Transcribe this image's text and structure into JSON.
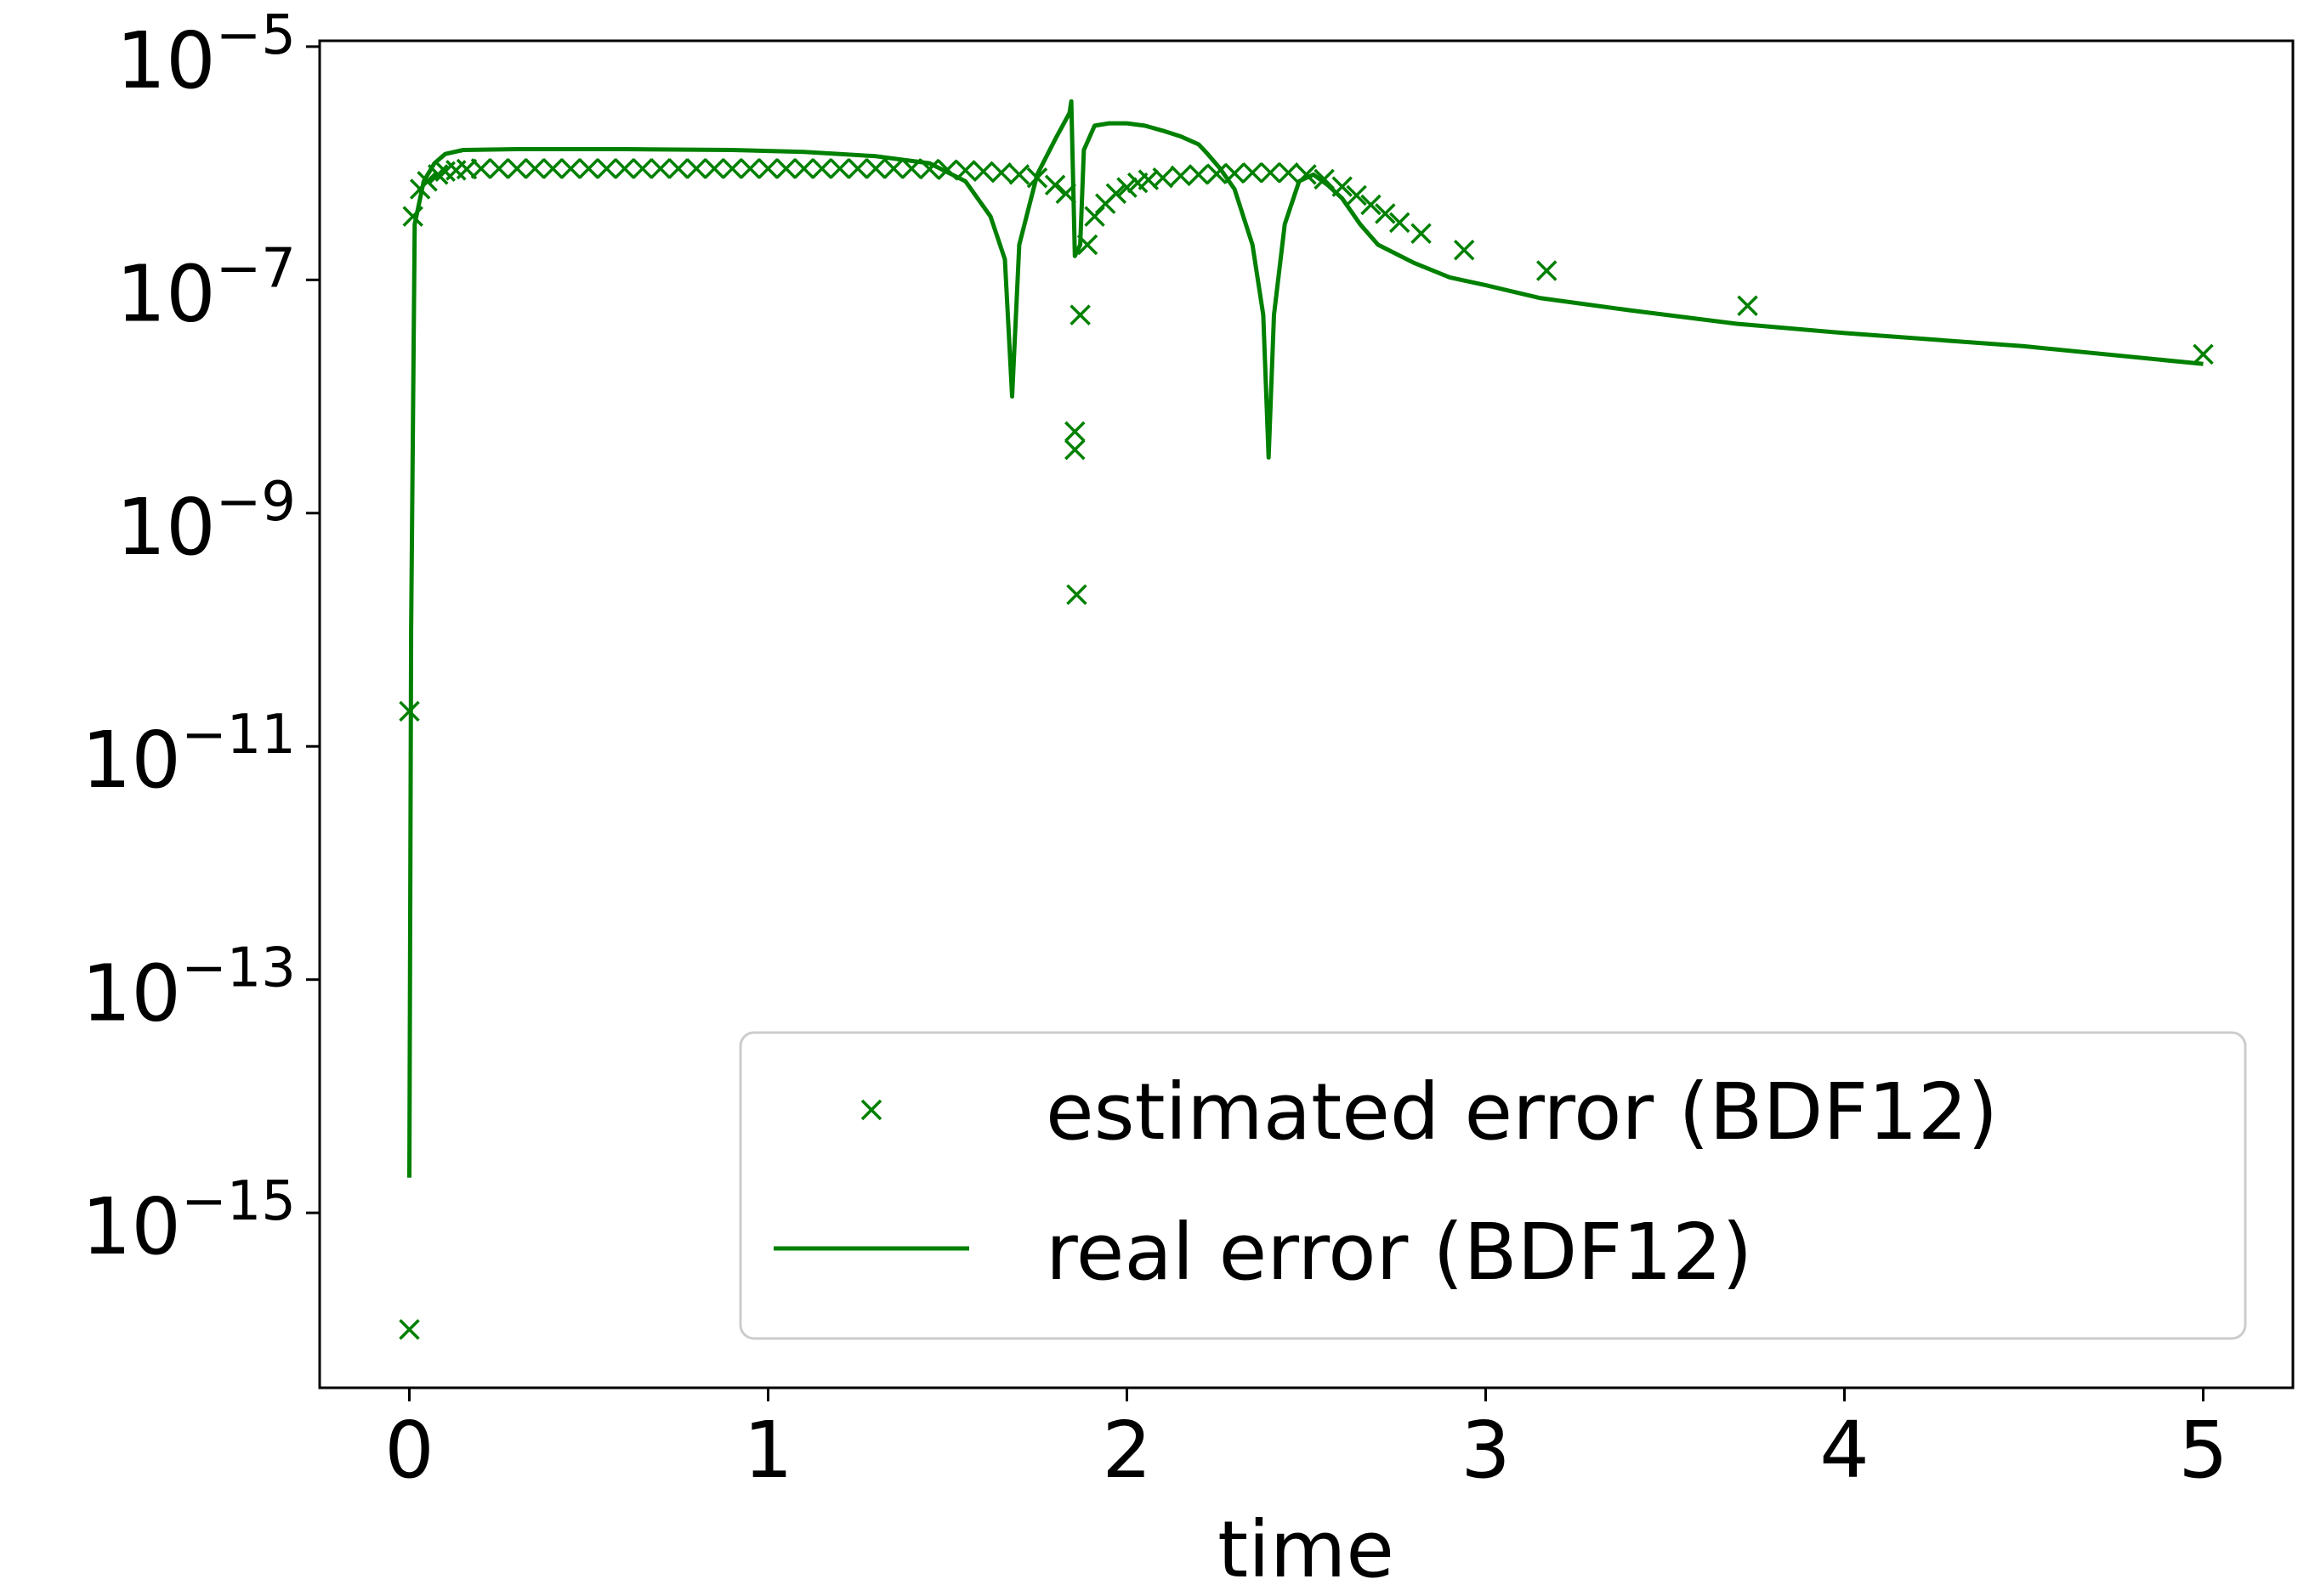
{
  "colors": {
    "series": "#008000",
    "axis": "#000000",
    "legend_border": "#cccccc",
    "background": "#ffffff"
  },
  "chart_data": {
    "type": "line",
    "title": "",
    "xlabel": "time",
    "ylabel": "",
    "yscale": "log",
    "xlim": [
      -0.25,
      5.25
    ],
    "ylim_log10": [
      -16.5,
      -4.95
    ],
    "xticks": [
      0,
      1,
      2,
      3,
      4,
      5
    ],
    "xtick_labels": [
      "0",
      "1",
      "2",
      "3",
      "4",
      "5"
    ],
    "ytick_exponents": [
      -5,
      -7,
      -9,
      -11,
      -13,
      -15
    ],
    "ytick_base": "10",
    "ytick_exp_labels": [
      "−5",
      "−7",
      "−9",
      "−11",
      "−13",
      "−15"
    ],
    "legend_position": "lower-right",
    "grid": false,
    "series": [
      {
        "name": "estimated error (BDF12)",
        "kind": "scatter",
        "marker": "x",
        "points": [
          [
            0.0,
            1e-16
          ],
          [
            0.0,
            2e-11
          ],
          [
            0.01,
            3.5e-07
          ],
          [
            0.03,
            6e-07
          ],
          [
            0.05,
            7e-07
          ],
          [
            0.08,
            8e-07
          ],
          [
            0.1,
            8.5e-07
          ],
          [
            0.13,
            8.7e-07
          ],
          [
            0.16,
            8.9e-07
          ],
          [
            0.2,
            9e-07
          ],
          [
            0.25,
            9e-07
          ],
          [
            0.3,
            9e-07
          ],
          [
            0.35,
            9e-07
          ],
          [
            0.4,
            9e-07
          ],
          [
            0.45,
            9e-07
          ],
          [
            0.5,
            9e-07
          ],
          [
            0.55,
            9e-07
          ],
          [
            0.6,
            9e-07
          ],
          [
            0.65,
            9e-07
          ],
          [
            0.7,
            9e-07
          ],
          [
            0.75,
            9e-07
          ],
          [
            0.8,
            9e-07
          ],
          [
            0.85,
            9e-07
          ],
          [
            0.9,
            9e-07
          ],
          [
            0.95,
            9e-07
          ],
          [
            1.0,
            9e-07
          ],
          [
            1.05,
            9e-07
          ],
          [
            1.1,
            9e-07
          ],
          [
            1.15,
            9e-07
          ],
          [
            1.2,
            9e-07
          ],
          [
            1.25,
            9e-07
          ],
          [
            1.3,
            9e-07
          ],
          [
            1.35,
            9e-07
          ],
          [
            1.4,
            9e-07
          ],
          [
            1.45,
            8.9e-07
          ],
          [
            1.5,
            8.8e-07
          ],
          [
            1.55,
            8.7e-07
          ],
          [
            1.6,
            8.5e-07
          ],
          [
            1.65,
            8.3e-07
          ],
          [
            1.7,
            8e-07
          ],
          [
            1.75,
            7.5e-07
          ],
          [
            1.8,
            6.5e-07
          ],
          [
            1.83,
            5.5e-07
          ],
          [
            1.855,
            5e-09
          ],
          [
            1.855,
            3.5e-09
          ],
          [
            1.86,
            2e-10
          ],
          [
            1.87,
            5e-08
          ],
          [
            1.89,
            2e-07
          ],
          [
            1.91,
            3.5e-07
          ],
          [
            1.94,
            4.5e-07
          ],
          [
            1.97,
            5.5e-07
          ],
          [
            2.0,
            6.2e-07
          ],
          [
            2.03,
            6.8e-07
          ],
          [
            2.06,
            7.2e-07
          ],
          [
            2.1,
            7.5e-07
          ],
          [
            2.15,
            7.8e-07
          ],
          [
            2.2,
            8e-07
          ],
          [
            2.25,
            8.1e-07
          ],
          [
            2.3,
            8.2e-07
          ],
          [
            2.35,
            8.3e-07
          ],
          [
            2.4,
            8.3e-07
          ],
          [
            2.45,
            8.3e-07
          ],
          [
            2.5,
            8e-07
          ],
          [
            2.55,
            7.3e-07
          ],
          [
            2.6,
            6.3e-07
          ],
          [
            2.64,
            5.3e-07
          ],
          [
            2.68,
            4.4e-07
          ],
          [
            2.72,
            3.7e-07
          ],
          [
            2.76,
            3.1e-07
          ],
          [
            2.82,
            2.5e-07
          ],
          [
            2.94,
            1.8e-07
          ],
          [
            3.17,
            1.2e-07
          ],
          [
            3.73,
            6e-08
          ],
          [
            5.0,
            2.3e-08
          ]
        ]
      },
      {
        "name": "real error (BDF12)",
        "kind": "line",
        "points": [
          [
            0.0,
            2e-15
          ],
          [
            0.005,
            1e-10
          ],
          [
            0.015,
            3e-07
          ],
          [
            0.04,
            7e-07
          ],
          [
            0.07,
            1e-06
          ],
          [
            0.1,
            1.2e-06
          ],
          [
            0.15,
            1.3e-06
          ],
          [
            0.3,
            1.32e-06
          ],
          [
            0.6,
            1.32e-06
          ],
          [
            0.9,
            1.3e-06
          ],
          [
            1.1,
            1.25e-06
          ],
          [
            1.3,
            1.15e-06
          ],
          [
            1.45,
            1e-06
          ],
          [
            1.55,
            7e-07
          ],
          [
            1.62,
            3.5e-07
          ],
          [
            1.66,
            1.5e-07
          ],
          [
            1.68,
            1e-08
          ],
          [
            1.7,
            2e-07
          ],
          [
            1.75,
            8e-07
          ],
          [
            1.8,
            1.6e-06
          ],
          [
            1.84,
            2.7e-06
          ],
          [
            1.845,
            3.4e-06
          ],
          [
            1.855,
            1.6e-07
          ],
          [
            1.87,
            2e-07
          ],
          [
            1.88,
            1.3e-06
          ],
          [
            1.91,
            2.1e-06
          ],
          [
            1.95,
            2.2e-06
          ],
          [
            2.0,
            2.2e-06
          ],
          [
            2.05,
            2.1e-06
          ],
          [
            2.1,
            1.9e-06
          ],
          [
            2.15,
            1.7e-06
          ],
          [
            2.2,
            1.45e-06
          ],
          [
            2.225,
            1.2e-06
          ],
          [
            2.26,
            9e-07
          ],
          [
            2.3,
            6e-07
          ],
          [
            2.35,
            2e-07
          ],
          [
            2.38,
            5e-08
          ],
          [
            2.395,
            3e-09
          ],
          [
            2.41,
            5e-08
          ],
          [
            2.44,
            3e-07
          ],
          [
            2.48,
            7e-07
          ],
          [
            2.52,
            8e-07
          ],
          [
            2.56,
            6.5e-07
          ],
          [
            2.6,
            5e-07
          ],
          [
            2.65,
            3e-07
          ],
          [
            2.7,
            2e-07
          ],
          [
            2.8,
            1.4e-07
          ],
          [
            2.9,
            1.05e-07
          ],
          [
            3.0,
            9e-08
          ],
          [
            3.15,
            7e-08
          ],
          [
            3.4,
            5.5e-08
          ],
          [
            3.7,
            4.2e-08
          ],
          [
            4.0,
            3.5e-08
          ],
          [
            4.5,
            2.7e-08
          ],
          [
            5.0,
            1.9e-08
          ]
        ]
      }
    ]
  }
}
